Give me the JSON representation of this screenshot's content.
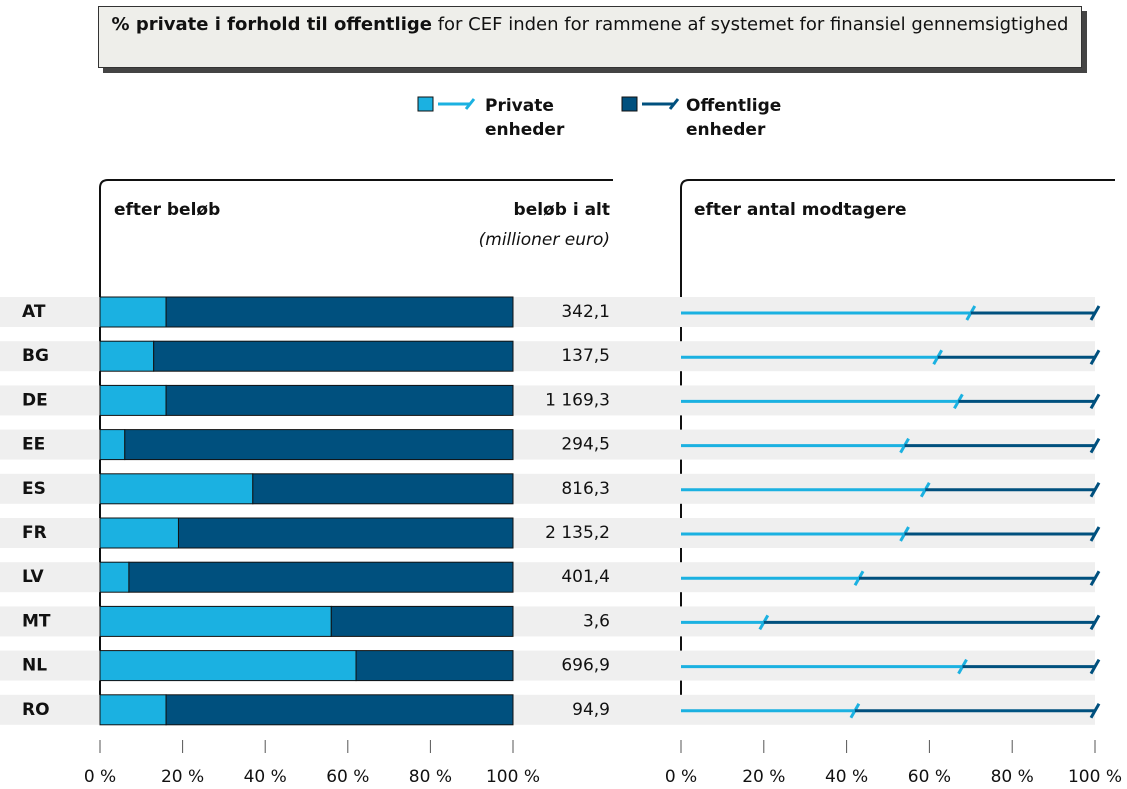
{
  "title": {
    "bold": "% private i forhold til offentlige",
    "rest": " for CEF inden for rammene af systemet for finansiel gennemsigtighed"
  },
  "chart_data": [
    {
      "type": "bar",
      "orientation": "horizontal",
      "stacked": true,
      "panel_title": "efter beløb",
      "totals_header": "beløb i alt",
      "totals_unit": "(millioner euro)",
      "categories": [
        "AT",
        "BG",
        "DE",
        "EE",
        "ES",
        "FR",
        "LV",
        "MT",
        "NL",
        "RO"
      ],
      "series": [
        {
          "name": "Private enheder",
          "color": "#1bb1e1",
          "values": [
            16,
            13,
            16,
            6,
            37,
            19,
            7,
            56,
            62,
            16
          ]
        },
        {
          "name": "Offentlige enheder",
          "color": "#00507e",
          "values": [
            84,
            87,
            84,
            94,
            63,
            81,
            93,
            44,
            38,
            84
          ]
        }
      ],
      "totals": {
        "values": [
          342.1,
          137.5,
          1169.3,
          294.5,
          816.3,
          2135.2,
          401.4,
          3.6,
          696.9,
          94.9
        ],
        "value_labels": [
          "342,1",
          "137,5",
          "1 169,3",
          "294,5",
          "816,3",
          "2 135,2",
          "401,4",
          "3,6",
          "696,9",
          "94,9"
        ]
      },
      "xlim": [
        0,
        100
      ],
      "xticks": [
        {
          "value": 0,
          "label": "0 %"
        },
        {
          "value": 20,
          "label": "20 %"
        },
        {
          "value": 40,
          "label": "40 %"
        },
        {
          "value": 60,
          "label": "60 %"
        },
        {
          "value": 80,
          "label": "80 %"
        },
        {
          "value": 100,
          "label": "100 %"
        }
      ]
    },
    {
      "type": "line",
      "orientation": "horizontal",
      "stacked": true,
      "panel_title": "efter antal modtagere",
      "series": [
        {
          "color": "#1bb1e1",
          "values": [
            70,
            62,
            67,
            54,
            59,
            54,
            43,
            20,
            68,
            42
          ]
        },
        {
          "color": "#00507e",
          "values": [
            30,
            38,
            33,
            46,
            41,
            46,
            57,
            80,
            32,
            58
          ]
        }
      ],
      "xlim": [
        0,
        100
      ],
      "xticks": [
        {
          "value": 0,
          "label": "0 %"
        },
        {
          "value": 20,
          "label": "20 %"
        },
        {
          "value": 40,
          "label": "40 %"
        },
        {
          "value": 60,
          "label": "60 %"
        },
        {
          "value": 80,
          "label": "80 %"
        },
        {
          "value": 100,
          "label": "100 %"
        }
      ]
    }
  ]
}
